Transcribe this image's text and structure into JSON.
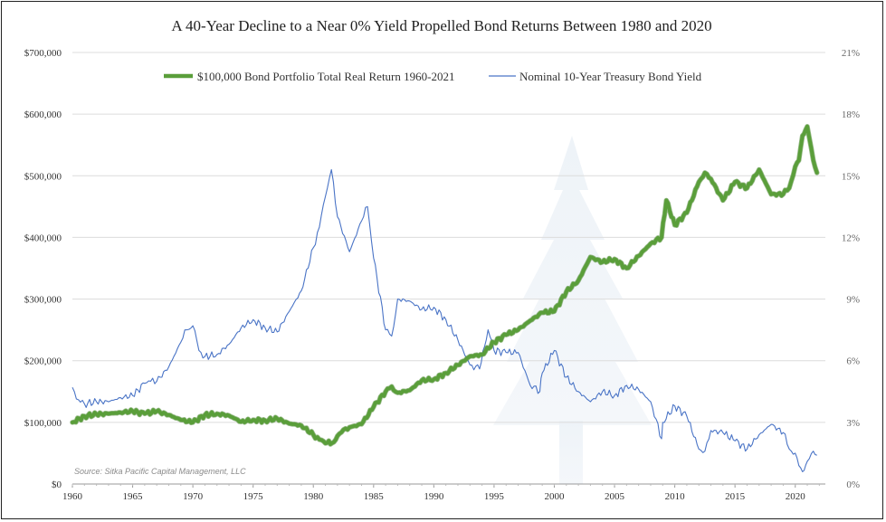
{
  "chart_data": {
    "type": "line",
    "title": "A 40-Year Decline to a Near 0% Yield Propelled Bond Returns Between 1980 and 2020",
    "source": "Source: Sitka Pacific Capital Management, LLC",
    "x_ticks": [
      "1960",
      "1965",
      "1970",
      "1975",
      "1980",
      "1985",
      "1990",
      "1995",
      "2000",
      "2005",
      "2010",
      "2015",
      "2020"
    ],
    "xlim": [
      1960,
      2022.5
    ],
    "y_left": {
      "ticks": [
        "$0",
        "$100,000",
        "$200,000",
        "$300,000",
        "$400,000",
        "$500,000",
        "$600,000",
        "$700,000"
      ],
      "ylim": [
        0,
        700000
      ]
    },
    "y_right": {
      "ticks": [
        "0%",
        "3%",
        "6%",
        "9%",
        "12%",
        "15%",
        "18%",
        "21%"
      ],
      "ylim": [
        0,
        21
      ]
    },
    "grid": true,
    "legend_position": "top",
    "series": [
      {
        "name": "$100,000 Bond Portfolio Total Real Return 1960-2021",
        "axis": "left",
        "color": "#5a9e3a",
        "x": [
          1960,
          1961,
          1962,
          1963,
          1964,
          1965,
          1966,
          1967,
          1968,
          1969,
          1970,
          1971,
          1972,
          1973,
          1974,
          1975,
          1976,
          1977,
          1978,
          1979,
          1980,
          1980.5,
          1981,
          1981.7,
          1982,
          1982.5,
          1983,
          1984,
          1985,
          1986,
          1986.5,
          1987,
          1988,
          1989,
          1990,
          1991,
          1992,
          1993,
          1994,
          1995,
          1996,
          1997,
          1998,
          1999,
          2000,
          2001,
          2002,
          2003,
          2004,
          2005,
          2006,
          2007,
          2008,
          2008.9,
          2009.3,
          2010,
          2011,
          2012,
          2012.5,
          2013,
          2014,
          2015,
          2016,
          2017,
          2018,
          2019,
          2019.5,
          2020,
          2020.3,
          2020.6,
          2021,
          2021.5,
          2021.8
        ],
        "values": [
          100000,
          110000,
          113000,
          114000,
          116000,
          118000,
          114000,
          118000,
          112000,
          104000,
          100000,
          112000,
          114000,
          111000,
          101000,
          104000,
          103000,
          106000,
          98000,
          95000,
          80000,
          72000,
          66000,
          68000,
          78000,
          88000,
          92000,
          97000,
          125000,
          150000,
          158000,
          148000,
          152000,
          168000,
          170000,
          180000,
          193000,
          207000,
          210000,
          230000,
          242000,
          250000,
          265000,
          278000,
          280000,
          312000,
          330000,
          368000,
          360000,
          365000,
          350000,
          370000,
          390000,
          400000,
          460000,
          420000,
          440000,
          490000,
          505000,
          495000,
          460000,
          490000,
          480000,
          510000,
          470000,
          470000,
          480000,
          515000,
          525000,
          565000,
          580000,
          525000,
          505000
        ]
      },
      {
        "name": "Nominal 10-Year Treasury Bond Yield",
        "axis": "right",
        "color": "#4a74c6",
        "x": [
          1960,
          1960.5,
          1961,
          1962,
          1963,
          1964,
          1965,
          1966,
          1966.5,
          1967,
          1968,
          1969,
          1969.5,
          1970,
          1970.5,
          1971,
          1972,
          1973,
          1974,
          1975,
          1976,
          1977,
          1978,
          1979,
          1980,
          1980.5,
          1981,
          1981.5,
          1982,
          1983,
          1984,
          1984.5,
          1985,
          1986,
          1986.5,
          1987,
          1988,
          1989,
          1990,
          1991,
          1992,
          1993,
          1993.8,
          1994.5,
          1995,
          1996,
          1997,
          1998,
          1998.8,
          1999,
          2000,
          2001,
          2002,
          2003,
          2004,
          2005,
          2006,
          2007,
          2008,
          2008.9,
          2009,
          2010,
          2011,
          2012,
          2012.5,
          2013,
          2014,
          2015,
          2016,
          2017,
          2018,
          2019,
          2019.5,
          2020,
          2020.3,
          2020.6,
          2021,
          2021.5,
          2021.8
        ],
        "values": [
          4.7,
          4.1,
          3.9,
          4.0,
          4.0,
          4.2,
          4.3,
          4.9,
          5.0,
          5.0,
          5.7,
          6.9,
          7.5,
          7.7,
          6.5,
          6.2,
          6.3,
          6.8,
          7.6,
          8.0,
          7.6,
          7.4,
          8.4,
          9.4,
          11.5,
          12.5,
          14.0,
          15.3,
          13.0,
          11.3,
          12.8,
          13.5,
          11.0,
          7.5,
          7.2,
          9.0,
          8.9,
          8.5,
          8.6,
          8.0,
          7.0,
          5.8,
          5.6,
          7.5,
          6.5,
          6.4,
          6.4,
          4.8,
          4.5,
          5.4,
          6.5,
          5.2,
          4.5,
          4.0,
          4.5,
          4.3,
          4.8,
          4.6,
          4.0,
          2.2,
          3.0,
          3.8,
          3.3,
          1.7,
          1.6,
          2.6,
          2.5,
          2.1,
          1.7,
          2.4,
          2.9,
          2.5,
          1.7,
          1.5,
          0.9,
          0.6,
          1.1,
          1.6,
          1.4
        ]
      }
    ]
  }
}
